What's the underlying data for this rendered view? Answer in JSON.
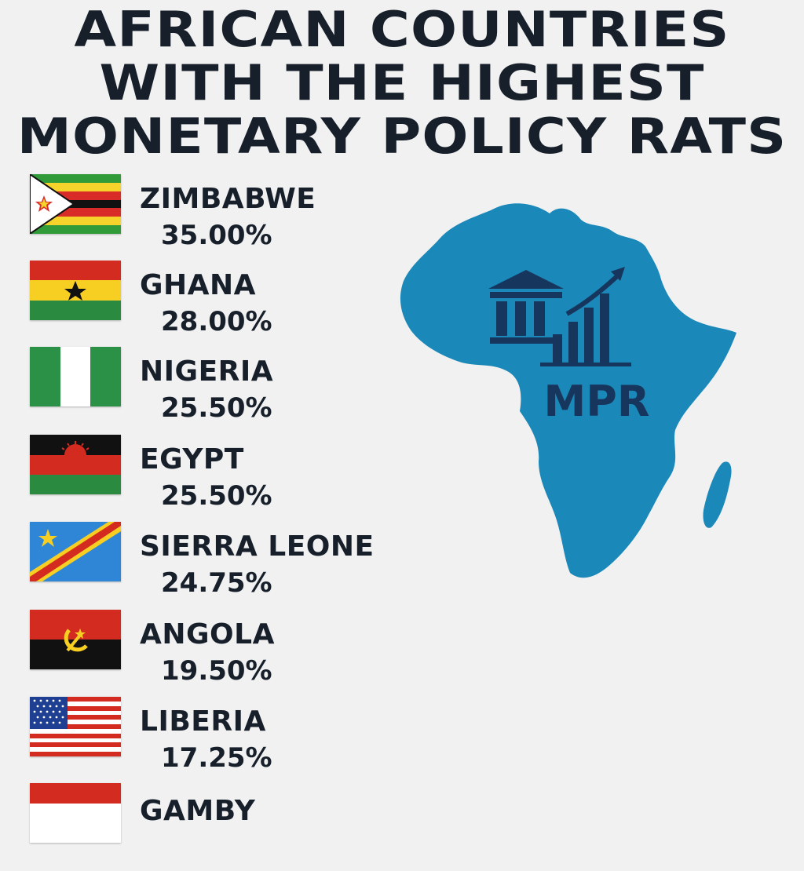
{
  "title_lines": [
    "AFRICAN COUNTRIES",
    "WITH THE HIGHEST",
    "MONETARY POLICY RATS"
  ],
  "map_label": "MPR",
  "colors": {
    "map": "#1a88b8",
    "icon": "#17365d",
    "text": "#17202a",
    "background": "#f1f1f1"
  },
  "chart_data": {
    "type": "table",
    "title": "AFRICAN COUNTRIES WITH THE HIGHEST MONETARY POLICY RATS",
    "columns": [
      "country",
      "rate"
    ],
    "rows": [
      {
        "country": "ZIMBABWE",
        "rate_label": "35.00%",
        "rate": 35.0,
        "flag": "zimbabwe-flag"
      },
      {
        "country": "GHANA",
        "rate_label": "28.00%",
        "rate": 28.0,
        "flag": "ghana-flag"
      },
      {
        "country": "NIGERIA",
        "rate_label": "25.50%",
        "rate": 25.5,
        "flag": "nigeria-flag"
      },
      {
        "country": "EGYPT",
        "rate_label": "25.50%",
        "rate": 25.5,
        "flag": "malawi-style-flag"
      },
      {
        "country": "SIERRA LEONE",
        "rate_label": "24.75%",
        "rate": 24.75,
        "flag": "drc-style-flag"
      },
      {
        "country": "ANGOLA",
        "rate_label": "19.50%",
        "rate": 19.5,
        "flag": "angola-flag"
      },
      {
        "country": "LIBERIA",
        "rate_label": "17.25%",
        "rate": 17.25,
        "flag": "us-style-flag"
      },
      {
        "country": "GAMBY",
        "rate_label": "",
        "flag": "red-white-flag"
      }
    ]
  }
}
